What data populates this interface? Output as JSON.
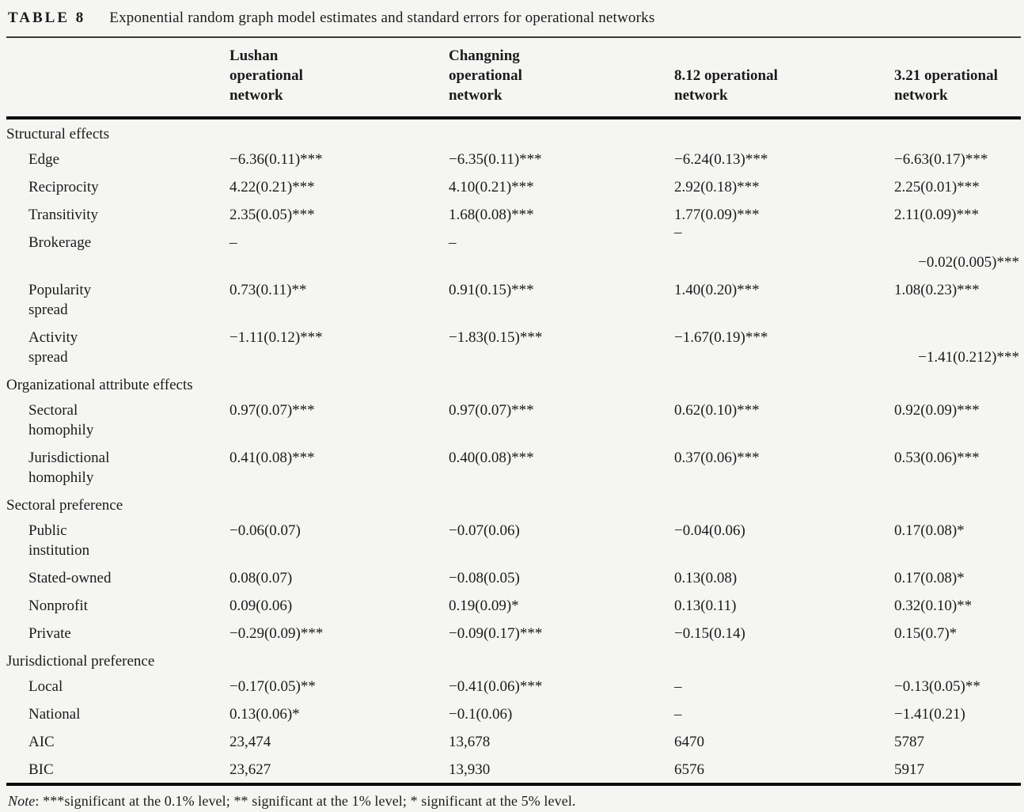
{
  "title": {
    "tag": "TABLE 8",
    "caption": "Exponential random graph model estimates and standard errors for operational networks"
  },
  "header": {
    "columns": [
      "Lushan\noperational\nnetwork",
      "Changning\noperational\nnetwork",
      "8.12 operational\nnetwork",
      "3.21 operational\nnetwork"
    ]
  },
  "rows": [
    {
      "label": "Structural effects"
    },
    {
      "label": "Edge",
      "values": [
        "−6.36(0.11)***",
        "−6.35(0.11)***",
        "−6.24(0.13)***",
        "−6.63(0.17)***"
      ]
    },
    {
      "label": "Reciprocity",
      "values": [
        "4.22(0.21)***",
        "4.10(0.21)***",
        "2.92(0.18)***",
        "2.25(0.01)***"
      ]
    },
    {
      "label": "Transitivity",
      "values": [
        "2.35(0.05)***",
        "1.68(0.08)***",
        "1.77(0.09)***",
        "2.11(0.09)***"
      ]
    },
    {
      "label": "Brokerage",
      "values": [
        "–",
        "–",
        "–",
        "−0.02(0.005)***"
      ]
    },
    {
      "label": "Popularity\nspread",
      "values": [
        "0.73(0.11)**",
        "0.91(0.15)***",
        "1.40(0.20)***",
        "1.08(0.23)***"
      ]
    },
    {
      "label": "Activity\nspread",
      "values": [
        "−1.11(0.12)***",
        "−1.83(0.15)***",
        "−1.67(0.19)***",
        "−1.41(0.212)***"
      ]
    },
    {
      "label": "Organizational attribute effects"
    },
    {
      "label": "Sectoral\nhomophily",
      "values": [
        "0.97(0.07)***",
        "0.97(0.07)***",
        "0.62(0.10)***",
        "0.92(0.09)***"
      ]
    },
    {
      "label": "Jurisdictional\nhomophily",
      "values": [
        "0.41(0.08)***",
        "0.40(0.08)***",
        "0.37(0.06)***",
        "0.53(0.06)***"
      ]
    },
    {
      "label": "Sectoral preference"
    },
    {
      "label": "Public\ninstitution",
      "values": [
        "−0.06(0.07)",
        "−0.07(0.06)",
        "−0.04(0.06)",
        "0.17(0.08)*"
      ]
    },
    {
      "label": "Stated-owned",
      "values": [
        "0.08(0.07)",
        "−0.08(0.05)",
        "0.13(0.08)",
        "0.17(0.08)*"
      ]
    },
    {
      "label": "Nonprofit",
      "values": [
        "0.09(0.06)",
        "0.19(0.09)*",
        "0.13(0.11)",
        "0.32(0.10)**"
      ]
    },
    {
      "label": "Private",
      "values": [
        "−0.29(0.09)***",
        "−0.09(0.17)***",
        "−0.15(0.14)",
        "0.15(0.7)*"
      ]
    },
    {
      "label": "Jurisdictional preference"
    },
    {
      "label": "Local",
      "values": [
        "−0.17(0.05)**",
        "−0.41(0.06)***",
        "–",
        "−0.13(0.05)**"
      ]
    },
    {
      "label": "National",
      "values": [
        "0.13(0.06)*",
        "−0.1(0.06)",
        "–",
        "−1.41(0.21)"
      ]
    },
    {
      "label": "AIC",
      "values": [
        "23,474",
        "13,678",
        "6470",
        "5787"
      ]
    },
    {
      "label": "BIC",
      "values": [
        "23,627",
        "13,930",
        "6576",
        "5917"
      ]
    }
  ],
  "note": {
    "label": "Note",
    "text": ": ***significant at the 0.1% level; ** significant at the 1% level; * significant at the 5% level."
  }
}
